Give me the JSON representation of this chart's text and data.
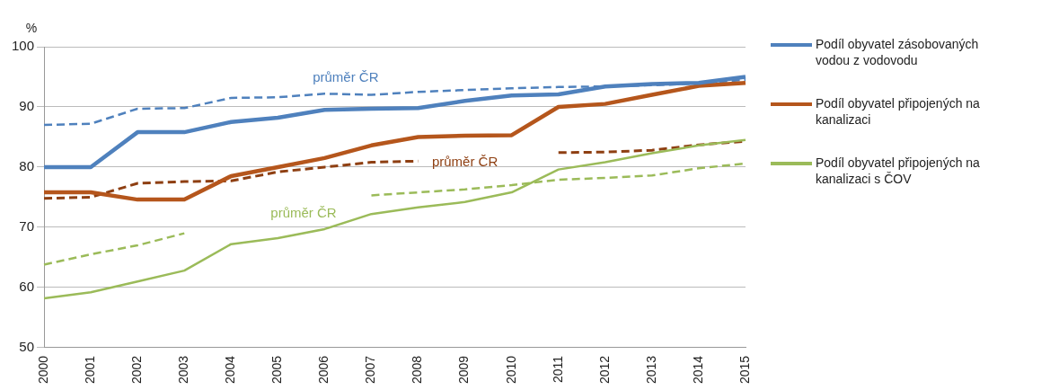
{
  "chart_data": {
    "type": "line",
    "ylabel": "%",
    "categories": [
      "2000",
      "2001",
      "2002",
      "2003",
      "2004",
      "2005",
      "2006",
      "2007",
      "2008",
      "2009",
      "2010",
      "2011",
      "2012",
      "2013",
      "2014",
      "2015"
    ],
    "series": [
      {
        "name": "Podíl obyvatel zásobovaných vodou z vodovodu",
        "color": "#4f81bd",
        "line_style": "solid",
        "values": [
          80,
          80,
          85.8,
          85.8,
          87.5,
          88.2,
          89.5,
          89.7,
          89.8,
          91,
          91.9,
          92.1,
          93.4,
          93.8,
          94,
          95
        ]
      },
      {
        "name": "Podíl obyvatel připojených na kanalizaci",
        "color": "#b5561c",
        "line_style": "solid",
        "values": [
          75.8,
          75.8,
          74.6,
          74.6,
          78.5,
          80,
          81.5,
          83.6,
          85,
          85.2,
          85.3,
          90,
          90.5,
          92,
          93.5,
          94
        ]
      },
      {
        "name": "Podíl obyvatel připojených na kanalizaci s ČOV",
        "color": "#9bbb59",
        "line_style": "solid",
        "values": [
          58.2,
          59.2,
          61,
          62.8,
          67.2,
          68.2,
          69.7,
          72.2,
          73.3,
          74.2,
          75.8,
          79.6,
          80.8,
          82.3,
          83.6,
          84.5
        ]
      },
      {
        "color": "#4f81bd",
        "line_style": "dashed",
        "values": [
          87,
          87.2,
          89.7,
          89.8,
          91.5,
          91.6,
          92.2,
          92,
          92.5,
          92.8,
          93.1,
          93.3,
          93.4,
          93.6,
          93.9,
          94.5
        ]
      },
      {
        "color": "#8e3f12",
        "line_style": "dashed",
        "values": [
          74.8,
          75,
          77.3,
          77.6,
          77.7,
          79.2,
          80,
          80.8,
          81,
          null,
          null,
          82.4,
          82.5,
          82.8,
          83.7,
          84.3
        ]
      },
      {
        "color": "#9bbb59",
        "line_style": "dashed",
        "values": [
          63.8,
          65.5,
          67,
          69,
          null,
          null,
          null,
          75.3,
          75.8,
          76.3,
          77,
          77.9,
          78.2,
          78.6,
          79.8,
          80.6
        ]
      }
    ],
    "annotations": [
      "průměr ČR",
      "průměr ČR",
      "průměr ČR"
    ],
    "ylim": [
      50,
      100
    ],
    "yticks": [
      50,
      60,
      70,
      80,
      90,
      100
    ],
    "grid": "y",
    "legend": "right",
    "marker": "none"
  }
}
